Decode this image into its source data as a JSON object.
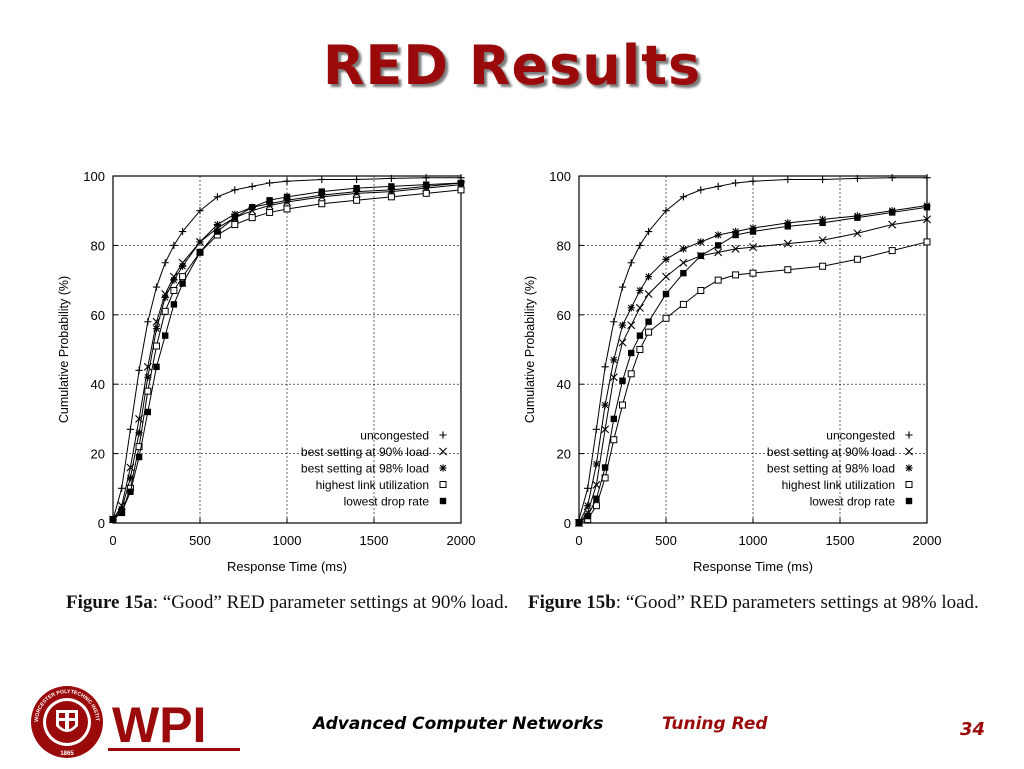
{
  "slide": {
    "title": "RED Results",
    "course": "Advanced Computer Networks",
    "topic": "Tuning Red",
    "page_number": "34",
    "colors": {
      "title": "#9b0a0a",
      "course": "#000000",
      "topic": "#9b0a0a",
      "page_number": "#9b0a0a"
    }
  },
  "logo": {
    "text": "WPI",
    "seal_text": "WORCESTER POLYTECHNIC INSTITUTE",
    "year": "1865",
    "color": "#9b0a0a"
  },
  "chart_data": [
    {
      "type": "line",
      "caption_label": "Figure 15a",
      "caption_text": ": “Good” RED parameter settings at 90% load.",
      "xlabel": "Response Time (ms)",
      "ylabel": "Cumulative Probability (%)",
      "xlim": [
        0,
        2000
      ],
      "ylim": [
        0,
        100
      ],
      "xticks": [
        0,
        500,
        1000,
        1500,
        2000
      ],
      "xtick_labels": [
        "0",
        "500",
        "1000",
        "1500",
        "2000"
      ],
      "yticks": [
        0,
        20,
        40,
        60,
        80,
        100
      ],
      "grid": true,
      "legend_position": "bottom-right",
      "series": [
        {
          "name": "uncongested",
          "marker": "+",
          "x": [
            0,
            50,
            100,
            150,
            200,
            250,
            300,
            350,
            400,
            500,
            600,
            700,
            800,
            900,
            1000,
            1200,
            1400,
            1600,
            1800,
            2000
          ],
          "y": [
            1,
            10,
            27,
            44,
            58,
            68,
            75,
            80,
            84,
            90,
            94,
            96,
            97,
            98,
            98.5,
            99,
            99,
            99.3,
            99.5,
            99.5
          ]
        },
        {
          "name": "best setting at 90% load",
          "marker": "x",
          "x": [
            0,
            50,
            100,
            150,
            200,
            250,
            300,
            350,
            400,
            500,
            600,
            700,
            800,
            900,
            1000,
            1200,
            1400,
            1600,
            1800,
            2000
          ],
          "y": [
            1,
            5,
            16,
            30,
            45,
            58,
            66,
            71,
            75,
            81,
            85,
            88,
            90,
            91.5,
            92.5,
            94,
            95,
            95.5,
            96.5,
            97.5
          ]
        },
        {
          "name": "best setting at 98% load",
          "marker": "*",
          "x": [
            0,
            50,
            100,
            150,
            200,
            250,
            300,
            350,
            400,
            500,
            600,
            700,
            800,
            900,
            1000,
            1200,
            1400,
            1600,
            1800,
            2000
          ],
          "y": [
            1,
            4,
            13,
            26,
            42,
            56,
            65,
            70,
            74,
            81,
            86,
            89,
            91,
            92,
            93,
            94.5,
            95.5,
            96,
            97,
            98
          ]
        },
        {
          "name": "highest link utilization",
          "marker": "square-open",
          "x": [
            0,
            50,
            100,
            150,
            200,
            250,
            300,
            350,
            400,
            500,
            600,
            700,
            800,
            900,
            1000,
            1200,
            1400,
            1600,
            1800,
            2000
          ],
          "y": [
            1,
            3,
            10,
            22,
            38,
            51,
            61,
            67,
            71,
            78,
            83,
            86,
            88,
            89.5,
            90.5,
            92,
            93,
            94,
            95,
            96
          ]
        },
        {
          "name": "lowest drop rate",
          "marker": "square-filled",
          "x": [
            0,
            50,
            100,
            150,
            200,
            250,
            300,
            350,
            400,
            500,
            600,
            700,
            800,
            900,
            1000,
            1200,
            1400,
            1600,
            1800,
            2000
          ],
          "y": [
            1,
            3,
            9,
            19,
            32,
            45,
            54,
            63,
            69,
            78,
            84,
            88,
            91,
            93,
            94,
            95.5,
            96.5,
            97,
            97.5,
            98
          ]
        }
      ]
    },
    {
      "type": "line",
      "caption_label": "Figure 15b",
      "caption_text": ": “Good” RED parameters settings at 98% load.",
      "xlabel": "Response Time (ms)",
      "ylabel": "Cumulative Probability (%)",
      "xlim": [
        0,
        2000
      ],
      "ylim": [
        0,
        100
      ],
      "xticks": [
        0,
        500,
        1000,
        1500,
        2000
      ],
      "xtick_labels": [
        "0",
        "500",
        "1000",
        "1500",
        "2000"
      ],
      "yticks": [
        0,
        20,
        40,
        60,
        80,
        100
      ],
      "grid": true,
      "legend_position": "bottom-right",
      "series": [
        {
          "name": "uncongested",
          "marker": "+",
          "x": [
            0,
            50,
            100,
            150,
            200,
            250,
            300,
            350,
            400,
            500,
            600,
            700,
            800,
            900,
            1000,
            1200,
            1400,
            1600,
            1800,
            2000
          ],
          "y": [
            1,
            10,
            27,
            45,
            58,
            68,
            75,
            80,
            84,
            90,
            94,
            96,
            97,
            98,
            98.5,
            99,
            99,
            99.3,
            99.5,
            99.5
          ]
        },
        {
          "name": "best setting at 90% load",
          "marker": "x",
          "x": [
            0,
            50,
            100,
            150,
            200,
            250,
            300,
            350,
            400,
            500,
            600,
            700,
            800,
            900,
            1000,
            1200,
            1400,
            1600,
            1800,
            2000
          ],
          "y": [
            0,
            3,
            11,
            27,
            42,
            52,
            57,
            62,
            66,
            71,
            75,
            77,
            78,
            79,
            79.5,
            80.5,
            81.5,
            83.5,
            86,
            87.5
          ]
        },
        {
          "name": "best setting at 98% load",
          "marker": "*",
          "x": [
            0,
            50,
            100,
            150,
            200,
            250,
            300,
            350,
            400,
            500,
            600,
            700,
            800,
            900,
            1000,
            1200,
            1400,
            1600,
            1800,
            2000
          ],
          "y": [
            0,
            5,
            17,
            34,
            47,
            57,
            62,
            67,
            71,
            76,
            79,
            81,
            83,
            84,
            85,
            86.5,
            87.5,
            88.5,
            90,
            91.5
          ]
        },
        {
          "name": "highest link utilization",
          "marker": "square-open",
          "x": [
            0,
            50,
            100,
            150,
            200,
            250,
            300,
            350,
            400,
            500,
            600,
            700,
            800,
            900,
            1000,
            1200,
            1400,
            1600,
            1800,
            2000
          ],
          "y": [
            0,
            1,
            5,
            13,
            24,
            34,
            43,
            50,
            55,
            59,
            63,
            67,
            70,
            71.5,
            72,
            73,
            74,
            76,
            78.5,
            81
          ]
        },
        {
          "name": "lowest drop rate",
          "marker": "square-filled",
          "x": [
            0,
            50,
            100,
            150,
            200,
            250,
            300,
            350,
            400,
            500,
            600,
            700,
            800,
            900,
            1000,
            1200,
            1400,
            1600,
            1800,
            2000
          ],
          "y": [
            0,
            2,
            7,
            16,
            30,
            41,
            49,
            54,
            58,
            66,
            72,
            77,
            80,
            83,
            84,
            85.5,
            86.5,
            88,
            89.5,
            91
          ]
        }
      ]
    }
  ]
}
